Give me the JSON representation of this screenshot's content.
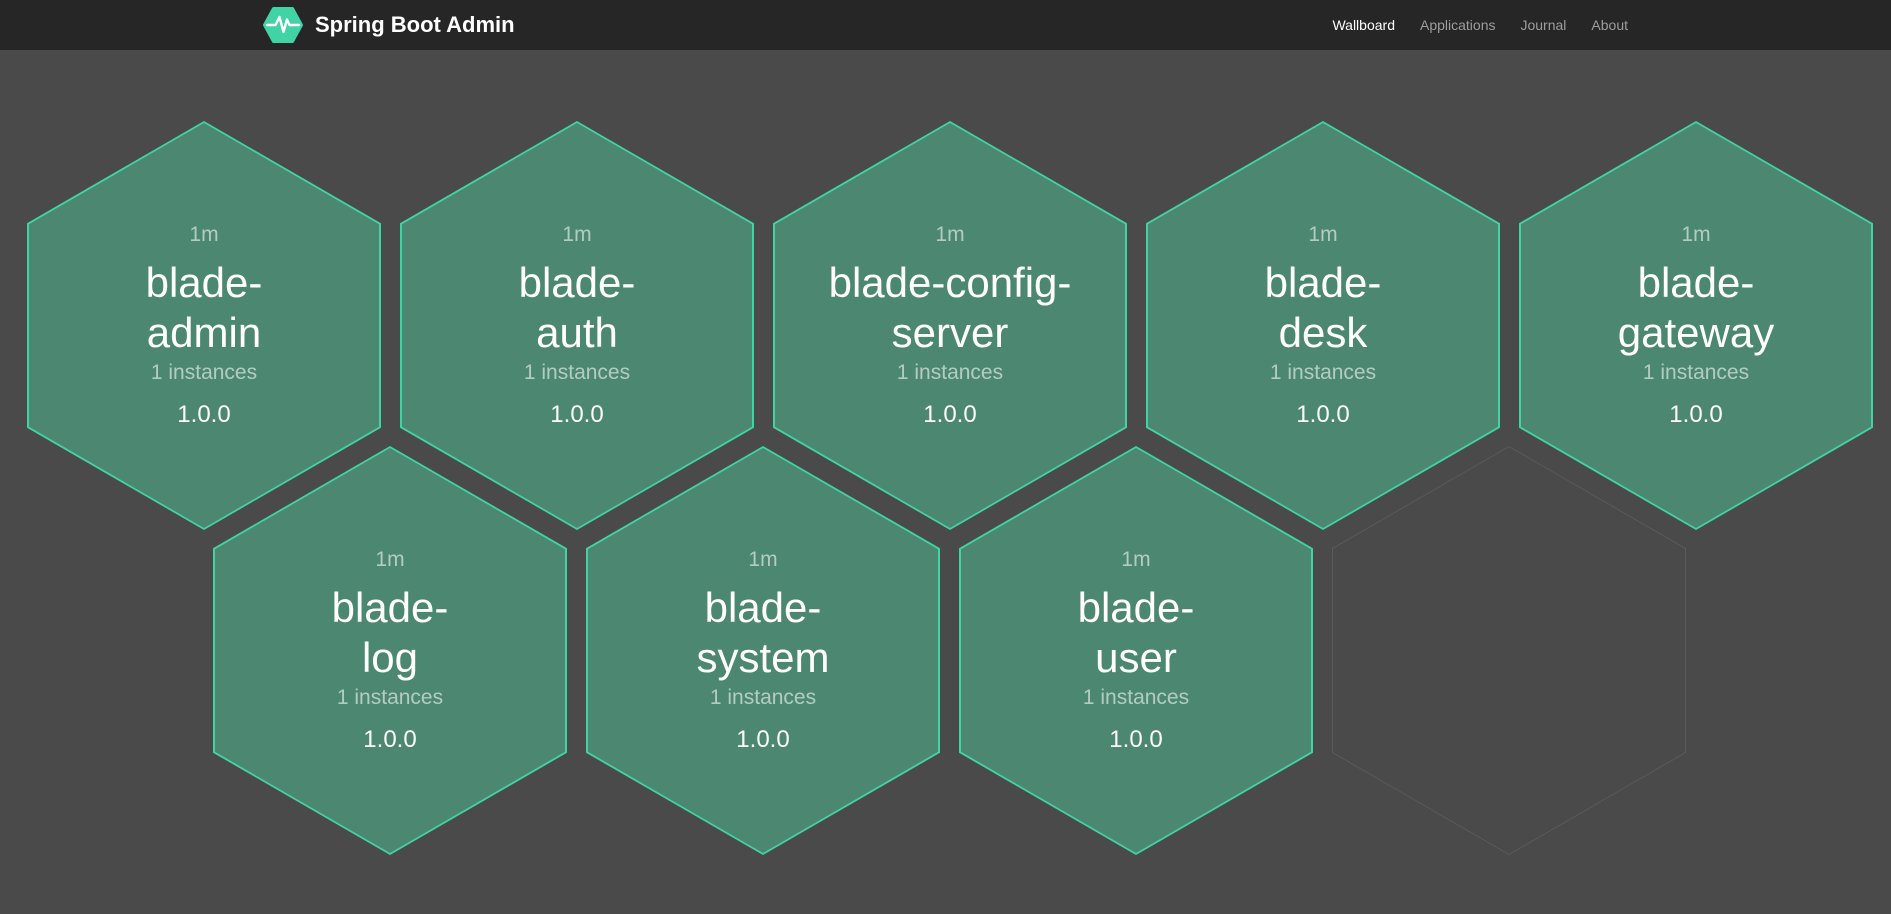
{
  "navbar": {
    "brand": "Spring Boot Admin",
    "items": [
      {
        "label": "Wallboard",
        "active": true
      },
      {
        "label": "Applications",
        "active": false
      },
      {
        "label": "Journal",
        "active": false
      },
      {
        "label": "About",
        "active": false
      }
    ]
  },
  "applications": [
    {
      "name": "blade-admin",
      "name_wrapped": "blade-\nadmin",
      "uptime": "1m",
      "instances": "1 instances",
      "version": "1.0.0",
      "status": "up"
    },
    {
      "name": "blade-auth",
      "name_wrapped": "blade-\nauth",
      "uptime": "1m",
      "instances": "1 instances",
      "version": "1.0.0",
      "status": "up"
    },
    {
      "name": "blade-config-server",
      "name_wrapped": "blade-config-\nserver",
      "uptime": "1m",
      "instances": "1 instances",
      "version": "1.0.0",
      "status": "up"
    },
    {
      "name": "blade-desk",
      "name_wrapped": "blade-\ndesk",
      "uptime": "1m",
      "instances": "1 instances",
      "version": "1.0.0",
      "status": "up"
    },
    {
      "name": "blade-gateway",
      "name_wrapped": "blade-\ngateway",
      "uptime": "1m",
      "instances": "1 instances",
      "version": "1.0.0",
      "status": "up"
    },
    {
      "name": "blade-log",
      "name_wrapped": "blade-\nlog",
      "uptime": "1m",
      "instances": "1 instances",
      "version": "1.0.0",
      "status": "up"
    },
    {
      "name": "blade-system",
      "name_wrapped": "blade-\nsystem",
      "uptime": "1m",
      "instances": "1 instances",
      "version": "1.0.0",
      "status": "up"
    },
    {
      "name": "blade-user",
      "name_wrapped": "blade-\nuser",
      "uptime": "1m",
      "instances": "1 instances",
      "version": "1.0.0",
      "status": "up"
    }
  ],
  "wallboard": {
    "empty_slot": true
  },
  "icons": {
    "logo": "spring-boot-admin-hexagon-pulse"
  },
  "colors": {
    "page_bg": "#4a4a4a",
    "navbar_bg": "#262626",
    "brand_green": "#42d3a5",
    "hex_fill": "#4b8771",
    "hex_border": "#42d3a5",
    "empty_border": "#5b5b5b",
    "nav_link": "#9d9d9d",
    "text": "#ffffff"
  }
}
